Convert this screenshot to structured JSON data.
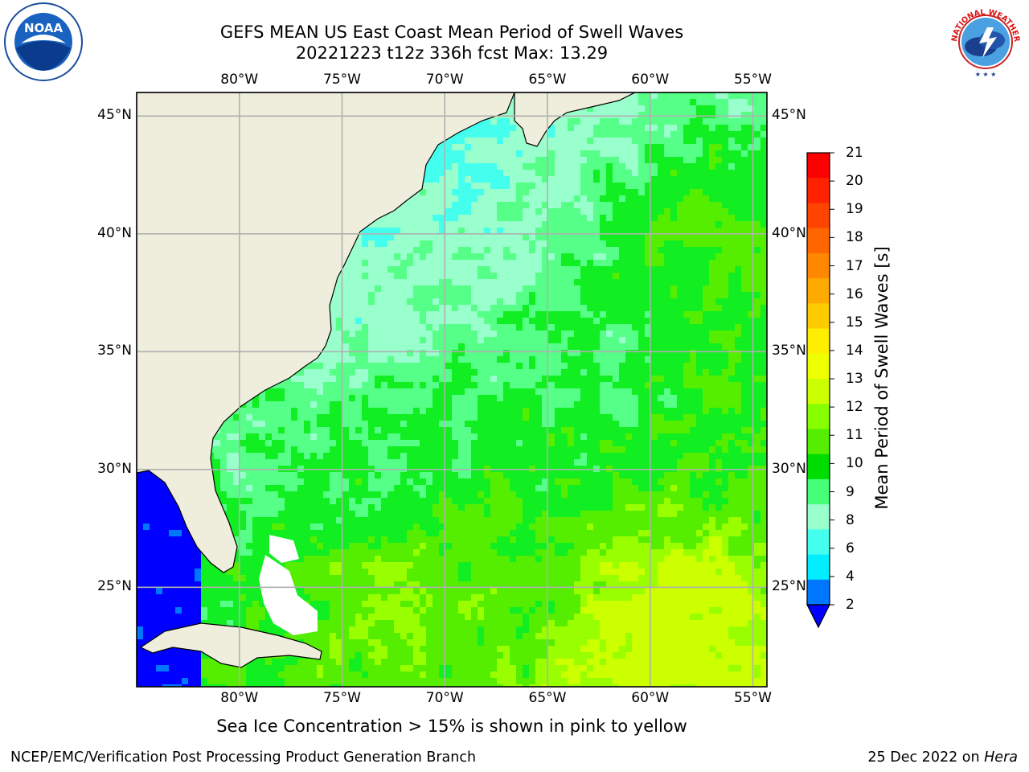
{
  "header": {
    "title_line1": "GEFS MEAN US East Coast Mean Period of Swell Waves",
    "title_line2": "20221223 t12z 336h fcst   Max: 13.29"
  },
  "map": {
    "lon_labels": [
      "80°W",
      "75°W",
      "70°W",
      "65°W",
      "60°W",
      "55°W"
    ],
    "lat_labels": [
      "45°N",
      "40°N",
      "35°N",
      "30°N",
      "25°N"
    ],
    "colors": {
      "land": "#efeedc",
      "grid": "#b0b0b0",
      "ice_free_white": "#ffffff"
    }
  },
  "colorbar": {
    "label": "Mean Period of Swell Waves [s]",
    "ticks": [
      "21",
      "20",
      "19",
      "18",
      "17",
      "16",
      "15",
      "14",
      "13",
      "12",
      "11",
      "10",
      "9",
      "8",
      "6",
      "4",
      "2"
    ],
    "colors": [
      "#ff0000",
      "#ff2200",
      "#ff4400",
      "#ff6600",
      "#ff8800",
      "#ffaa00",
      "#ffcc00",
      "#ffee00",
      "#eeff00",
      "#ccff00",
      "#88ff00",
      "#55ee00",
      "#00dd00",
      "#44ff77",
      "#99ffcc",
      "#44ffee",
      "#00eeff",
      "#0077ff"
    ],
    "under_color": "#0000ff"
  },
  "caption": "Sea Ice Concentration > 15% is shown in pink to yellow",
  "footer": {
    "left": "NCEP/EMC/Verification Post Processing Product Generation Branch",
    "right_prefix": "25 Dec 2022 on ",
    "right_host": "Hera"
  },
  "logos": {
    "left": "noaa-logo",
    "right": "nws-logo",
    "noaa_text": "NOAA",
    "nws_text": "NATIONAL WEATHER SERVICE"
  }
}
